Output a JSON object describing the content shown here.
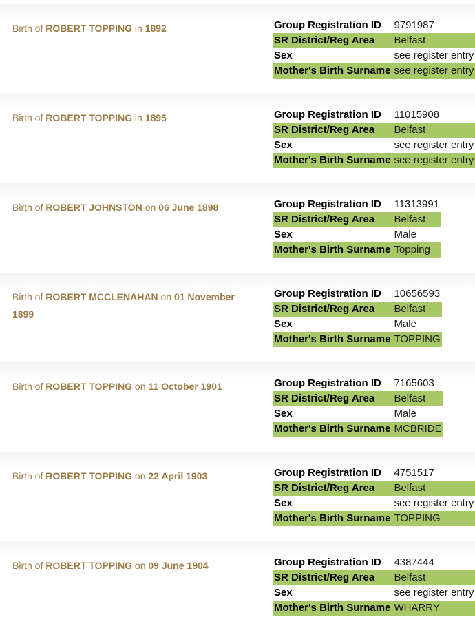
{
  "theme": {
    "highlight_green": "#a8c766",
    "title_color": "#9c7a44",
    "divider_fade": "#f4f4f4"
  },
  "field_labels": {
    "group_registration_id": "Group Registration ID",
    "sr_district_reg_area": "SR District/Reg Area",
    "sex": "Sex",
    "mothers_birth_surname": "Mother's Birth Surname"
  },
  "records": [
    {
      "prefix": "Birth of",
      "name": "ROBERT TOPPING",
      "connector": "in",
      "date": "1892",
      "group_registration_id": "9791987",
      "sr_district_reg_area": "Belfast",
      "sex": "see register entry",
      "mothers_birth_surname": "see register entry"
    },
    {
      "prefix": "Birth of",
      "name": "ROBERT TOPPING",
      "connector": "in",
      "date": "1895",
      "group_registration_id": "11015908",
      "sr_district_reg_area": "Belfast",
      "sex": "see register entry",
      "mothers_birth_surname": "see register entry"
    },
    {
      "prefix": "Birth of",
      "name": "ROBERT JOHNSTON",
      "connector": "on",
      "date": "06 June 1898",
      "group_registration_id": "11313991",
      "sr_district_reg_area": "Belfast",
      "sex": "Male",
      "mothers_birth_surname": "Topping"
    },
    {
      "prefix": "Birth of",
      "name": "ROBERT MCCLENAHAN",
      "connector": "on",
      "date": "01 November 1899",
      "group_registration_id": "10656593",
      "sr_district_reg_area": "Belfast",
      "sex": "Male",
      "mothers_birth_surname": "TOPPING"
    },
    {
      "prefix": "Birth of",
      "name": "ROBERT TOPPING",
      "connector": "on",
      "date": "11 October 1901",
      "group_registration_id": "7165603",
      "sr_district_reg_area": "Belfast",
      "sex": "Male",
      "mothers_birth_surname": "MCBRIDE"
    },
    {
      "prefix": "Birth of",
      "name": "ROBERT TOPPING",
      "connector": "on",
      "date": "22 April 1903",
      "group_registration_id": "4751517",
      "sr_district_reg_area": "Belfast",
      "sex": "see register entry",
      "mothers_birth_surname": "TOPPING"
    },
    {
      "prefix": "Birth of",
      "name": "ROBERT TOPPING",
      "connector": "on",
      "date": "09 June 1904",
      "group_registration_id": "4387444",
      "sr_district_reg_area": "Belfast",
      "sex": "see register entry",
      "mothers_birth_surname": "WHARRY"
    }
  ]
}
